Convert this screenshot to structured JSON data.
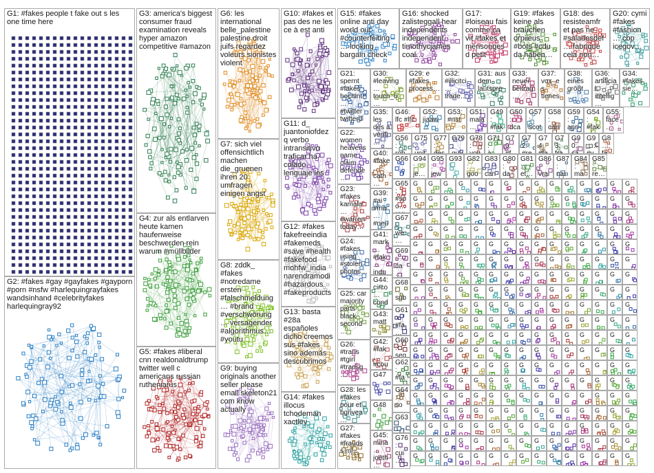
{
  "groups": [
    {
      "id": "g1",
      "label": "G1: #fakes people t fake out s les one time here",
      "color": "#2b2c7a"
    },
    {
      "id": "g2",
      "label": "G2: #fakes #gay #gayfakes #gayporn #porn #nsfw #harlequingrayfakes wandsinhand #celebrityfakes harlequingray92",
      "color": "#2a7fc4"
    },
    {
      "id": "g3",
      "label": "G3: america's biggest consumer fraud examination reveals hyper amazon competitive #amazon",
      "color": "#2e7d4f"
    },
    {
      "id": "g4",
      "label": "G4: zur als entlarven heute kamen haufenweise beschwerden rein warum #müllbilder",
      "color": "#3a9e3a"
    },
    {
      "id": "g5",
      "label": "G5: #fakes #liberal cnn realdonaldtrump twitter well c americans russian rutheniarus",
      "color": "#b02020"
    },
    {
      "id": "g6",
      "label": "G6: les international belle_palestine palestine droit juifs regardez voleurs sionistes violent",
      "color": "#e08a1e"
    },
    {
      "id": "g7",
      "label": "G7: sich viel offensichtlich machen die_gruenen ihren 20 umfragen einigen angst",
      "color": "#d9a400"
    },
    {
      "id": "g8",
      "label": "G8: zddk_ #fakes #notredame ersten #falschmeldung… #brand #verschwörung… versagender #algorithmus… #youtu",
      "color": "#7cc020"
    },
    {
      "id": "g9",
      "label": "G9: buying originals another seller please email skeleton21 com know actually",
      "color": "#9a70c0"
    },
    {
      "id": "g10",
      "label": "G10: #fakes et pas des ne les ce à est anti",
      "color": "#5a2a7a"
    },
    {
      "id": "g11",
      "label": "G11: d_ juantoniofdez q verbo intransitivo traficar ha colado lenguaje les",
      "color": "#7a40a8"
    },
    {
      "id": "g12",
      "label": "G12: #fakes fakefreeindia #fakemeds #save #health #fakefood mohfw_india narendramodi #hazardous #fakeproducts",
      "color": "#b8b8b8"
    },
    {
      "id": "g13",
      "label": "G13: basta #28a españoles dicho creemos sus #fakes sino además descubrimos",
      "color": "#c8a050"
    },
    {
      "id": "g14",
      "label": "G14: #fakes illocus tchodeman xactley",
      "color": "#2aa0a0"
    },
    {
      "id": "g15",
      "label": "G15: #fakes online anti day world out #counterfeiting… looking bargain check",
      "color": "#2a7fc4"
    },
    {
      "id": "g16",
      "label": "G16: shocked zalisteggall hear independents independent timothycjames coal…",
      "color": "#8a3a9a"
    },
    {
      "id": "g17",
      "label": "G17: #loiseau fais comme ça vit #fakes et mensonges d petit",
      "color": "#c02a5a"
    },
    {
      "id": "g19",
      "label": "G19: #fakes keine als brauchen orpiieus #bots #cdu da haben…",
      "color": "#4a8a2a"
    },
    {
      "id": "g18",
      "label": "G18: des resisteamfr et pas ne #saladesdef… fabrique cela non…",
      "color": "#c03a3a"
    },
    {
      "id": "g20",
      "label": "G20: cymi #fakes #fashion… cbp icegov…",
      "color": "#3a9a9a"
    },
    {
      "id": "g21",
      "label": "G21: spernt #fakes hochint… #twitter twitterd…",
      "color": "#2a5a9a"
    },
    {
      "id": "g30",
      "label": "G30: #leaving… touch_o…",
      "color": "#7a9a2a"
    },
    {
      "id": "g29",
      "label": "G29: e #fakes process…",
      "color": "#c07a2a"
    },
    {
      "id": "g32",
      "label": "G32: #illicitci… trade…",
      "color": "#5a5aaa"
    },
    {
      "id": "g31",
      "label": "G31: aus dem lautspre…",
      "color": "#2a7a5a"
    },
    {
      "id": "g33",
      "label": "G33: neuer beitrag…",
      "color": "#9a2a5a"
    },
    {
      "id": "g37",
      "label": "G37: vox_es tienes",
      "color": "#aa6a2a"
    },
    {
      "id": "g38",
      "label": "G38: eines größt…",
      "color": "#4a7aaa"
    },
    {
      "id": "g36",
      "label": "G36: artificial intellig…",
      "color": "#6a6a6a"
    },
    {
      "id": "g34",
      "label": "G34: #fakes sie…",
      "color": "#2a9a6a"
    },
    {
      "id": "g22",
      "label": "G22: women heavens name claim defende…",
      "color": "#6a3aaa"
    },
    {
      "id": "g23",
      "label": "G23: #fakes kamala… ewarren today…",
      "color": "#aa3a3a"
    },
    {
      "id": "g24",
      "label": "G24: #fakes using #stolen photos…",
      "color": "#3a6aaa"
    },
    {
      "id": "g25",
      "label": "G25: car majority parts black second…",
      "color": "#6a9a3a"
    },
    {
      "id": "g26",
      "label": "G26: #trans #tgirl #transg…",
      "color": "#aa3a8a"
    },
    {
      "id": "g28",
      "label": "G28: les #fakes pour et bgrivea…",
      "color": "#3a8a8a"
    },
    {
      "id": "g27",
      "label": "G27: #fakes #frauds s mj…",
      "color": "#8a6a2a"
    },
    {
      "id": "g35",
      "label": "G35: les des à vérifi…",
      "color": "#5a5a9a"
    },
    {
      "id": "g40",
      "label": "G40: #fake… cath… calli…",
      "color": "#9a5a2a"
    },
    {
      "id": "g39",
      "label": "G39: #ai #ma… #neu…",
      "color": "#2a6a9a"
    },
    {
      "id": "g41",
      "label": "G41: mark… #fak… indu…",
      "color": "#7a2a7a"
    },
    {
      "id": "g44",
      "label": "G44: circo… cond…",
      "color": "#2a8a4a"
    },
    {
      "id": "g43",
      "label": "G43: matt…",
      "color": "#8a8a2a"
    },
    {
      "id": "g42",
      "label": "G42: #fak… #cou…",
      "color": "#aa4a4a"
    },
    {
      "id": "g47",
      "label": "G47",
      "color": "#4a4aaa"
    },
    {
      "id": "g48",
      "label": "G48",
      "color": "#3a9a3a"
    },
    {
      "id": "g45",
      "label": "G45: mina… joeth…",
      "color": "#9a3a6a"
    },
    {
      "id": "g46",
      "label": "G46: lfc #lfc",
      "color": "#c02020"
    },
    {
      "id": "g52",
      "label": "G52: jiaaw…",
      "color": "#2a7aaa"
    },
    {
      "id": "g53",
      "label": "G53: #nst…",
      "color": "#aa7a2a"
    },
    {
      "id": "g51",
      "label": "G51: mala…",
      "color": "#6a2aaa"
    },
    {
      "id": "g49",
      "label": "G49: #fak…",
      "color": "#2aaa7a"
    },
    {
      "id": "g50",
      "label": "G50: dca…",
      "color": "#aa2a6a"
    },
    {
      "id": "g57",
      "label": "G57: scot…",
      "color": "#4a8aaa"
    },
    {
      "id": "g58",
      "label": "G58: carl…",
      "color": "#8a4a2a"
    },
    {
      "id": "g59",
      "label": "G59: ann…",
      "color": "#2a5a8a"
    },
    {
      "id": "g54",
      "label": "G54: #fak…",
      "color": "#7aaa2a"
    },
    {
      "id": "g55",
      "label": "G55: face…",
      "color": "#aa5a8a"
    },
    {
      "id": "g56",
      "label": "G56: rob…",
      "color": "#3a7a6a"
    },
    {
      "id": "g75",
      "label": "G75: unit…",
      "color": "#6a6aaa"
    },
    {
      "id": "g77",
      "label": "G77: des…",
      "color": "#aa8a3a"
    },
    {
      "id": "g79",
      "label": "G79: guy…",
      "color": "#3a3a8a"
    },
    {
      "id": "g78",
      "label": "G78: vou…",
      "color": "#8a3a3a"
    },
    {
      "id": "g71",
      "label": "G71: à…",
      "color": "#3a8a3a"
    },
    {
      "id": "g70",
      "label": "G70: #f…",
      "color": "#8a3a8a"
    },
    {
      "id": "g72",
      "label": "G72: #re…",
      "color": "#3a6a8a"
    },
    {
      "id": "g74",
      "label": "G74: #fa…",
      "color": "#8a6a3a"
    },
    {
      "id": "g73",
      "label": "G73: fra…",
      "color": "#5a8a5a"
    },
    {
      "id": "g90",
      "label": "G90: sa…",
      "color": "#8a5a8a"
    },
    {
      "id": "g9x",
      "label": "G9…: #v…",
      "color": "#5a5a5a"
    },
    {
      "id": "g8x",
      "label": "G8…: fa…",
      "color": "#aa4a2a"
    },
    {
      "id": "g66",
      "label": "G66",
      "color": "#2a4aaa"
    },
    {
      "id": "g94",
      "label": "G94: je…",
      "color": "#8aaa4a"
    },
    {
      "id": "g95",
      "label": "G95: jew…",
      "color": "#aa4aaa"
    },
    {
      "id": "g93",
      "label": "G93",
      "color": "#4aaaaa"
    },
    {
      "id": "g82",
      "label": "G82: goo…",
      "color": "#aaaa4a"
    },
    {
      "id": "g83",
      "label": "G83: can…",
      "color": "#4a4a8a"
    },
    {
      "id": "g80",
      "label": "G80: da…",
      "color": "#8a4a4a"
    },
    {
      "id": "g81",
      "label": "G81: et…",
      "color": "#4a8a4a"
    },
    {
      "id": "g86",
      "label": "G86: vrai…",
      "color": "#8a4a8a"
    },
    {
      "id": "g87",
      "label": "G87: nai…",
      "color": "#4a6a8a"
    },
    {
      "id": "g84",
      "label": "G84: ma…",
      "color": "#8a6a4a"
    },
    {
      "id": "g85",
      "label": "G85: re…",
      "color": "#6a8a4a"
    },
    {
      "id": "g65",
      "label": "G65: #spo… reg…",
      "color": "#aa2a2a"
    },
    {
      "id": "g67",
      "label": "G67: we… tho…",
      "color": "#2a6a6a"
    },
    {
      "id": "g69",
      "label": "G69: ca… est…",
      "color": "#6a2a6a"
    },
    {
      "id": "g68",
      "label": "G68: sub… fak…",
      "color": "#6a6a2a"
    },
    {
      "id": "g61",
      "label": "G61: #fa… #fi…",
      "color": "#2a2a6a"
    },
    {
      "id": "g60",
      "label": "G60: seg…",
      "color": "#6a2a2a"
    },
    {
      "id": "g62",
      "label": "G62: #fa… #fa…",
      "color": "#2a6a2a"
    },
    {
      "id": "g64",
      "label": "G64: so… gra…",
      "color": "#6a4a2a"
    },
    {
      "id": "g63",
      "label": "G63",
      "color": "#2a4a6a"
    },
    {
      "id": "g76",
      "label": "G76: cui…",
      "color": "#4a2a6a"
    }
  ],
  "small_cells": {
    "label_prefix": "G…",
    "fill_label": "G",
    "color": "#888888"
  }
}
